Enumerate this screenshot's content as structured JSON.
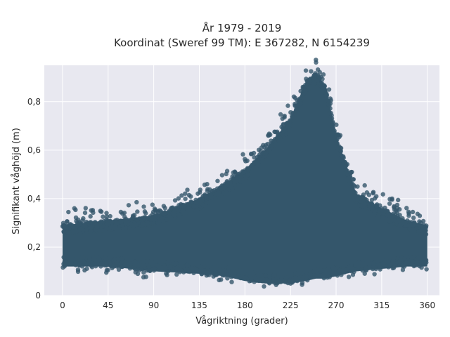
{
  "chart_data": {
    "type": "scatter",
    "title_line1": "År 1979 - 2019",
    "title_line2": "Koordinat (Sweref 99 TM): E 367282, N 6154239",
    "xlabel": "Vågriktning (grader)",
    "ylabel": "Signifikant våghöjd (m)",
    "xlim": [
      -18,
      372
    ],
    "ylim": [
      0,
      0.95
    ],
    "xticks": [
      0,
      45,
      90,
      135,
      180,
      225,
      270,
      315,
      360
    ],
    "xtick_labels": [
      "0",
      "45",
      "90",
      "135",
      "180",
      "225",
      "270",
      "315",
      "360"
    ],
    "yticks": [
      0,
      0.2,
      0.4,
      0.6,
      0.8
    ],
    "ytick_labels": [
      "0",
      "0,2",
      "0,4",
      "0,6",
      "0,8"
    ],
    "grid": true,
    "legend": "none",
    "point_color": "#34566b",
    "plot_background": "#e8e8f0",
    "x_range": [
      0,
      360
    ],
    "envelope": {
      "direction": [
        0,
        45,
        90,
        135,
        160,
        180,
        200,
        225,
        240,
        250,
        260,
        270,
        290,
        315,
        340,
        360
      ],
      "upper_height": [
        0.29,
        0.31,
        0.33,
        0.4,
        0.46,
        0.52,
        0.6,
        0.73,
        0.88,
        0.92,
        0.86,
        0.66,
        0.42,
        0.36,
        0.31,
        0.29
      ],
      "lower_height": [
        0.12,
        0.12,
        0.1,
        0.09,
        0.08,
        0.06,
        0.05,
        0.05,
        0.06,
        0.07,
        0.07,
        0.08,
        0.1,
        0.11,
        0.12,
        0.12
      ]
    }
  }
}
